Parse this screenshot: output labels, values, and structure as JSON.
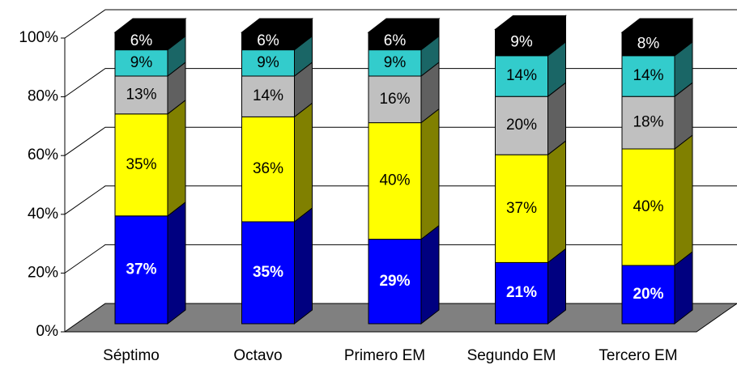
{
  "chart_data": {
    "type": "stacked_bar_3d",
    "categories": [
      "Séptimo",
      "Octavo",
      "Primero EM",
      "Segundo EM",
      "Tercero EM"
    ],
    "series": [
      {
        "color": "#0000ff",
        "label_color": "#ffffff",
        "values": [
          37,
          35,
          29,
          21,
          20
        ],
        "value_labels": [
          "37%",
          "35%",
          "29%",
          "21%",
          "20%"
        ]
      },
      {
        "color": "#ffff00",
        "label_color": "#000000",
        "values": [
          35,
          36,
          40,
          37,
          40
        ],
        "value_labels": [
          "35%",
          "36%",
          "40%",
          "37%",
          "40%"
        ]
      },
      {
        "color": "#c0c0c0",
        "label_color": "#000000",
        "values": [
          13,
          14,
          16,
          20,
          18
        ],
        "value_labels": [
          "13%",
          "14%",
          "16%",
          "20%",
          "18%"
        ]
      },
      {
        "color": "#33cccc",
        "label_color": "#000000",
        "values": [
          9,
          9,
          9,
          14,
          14
        ],
        "value_labels": [
          "9%",
          "9%",
          "9%",
          "14%",
          "14%"
        ]
      },
      {
        "color": "#000000",
        "label_color": "#ffffff",
        "values": [
          6,
          6,
          6,
          9,
          8
        ],
        "value_labels": [
          "6%",
          "6%",
          "6%",
          "9%",
          "8%"
        ]
      }
    ],
    "ylim": [
      0,
      100
    ],
    "yticks": [
      {
        "value": 0,
        "label": "0%"
      },
      {
        "value": 20,
        "label": "20%"
      },
      {
        "value": 40,
        "label": "40%"
      },
      {
        "value": 60,
        "label": "60%"
      },
      {
        "value": 80,
        "label": "80%"
      },
      {
        "value": 100,
        "label": "100%"
      }
    ],
    "grid": true
  }
}
